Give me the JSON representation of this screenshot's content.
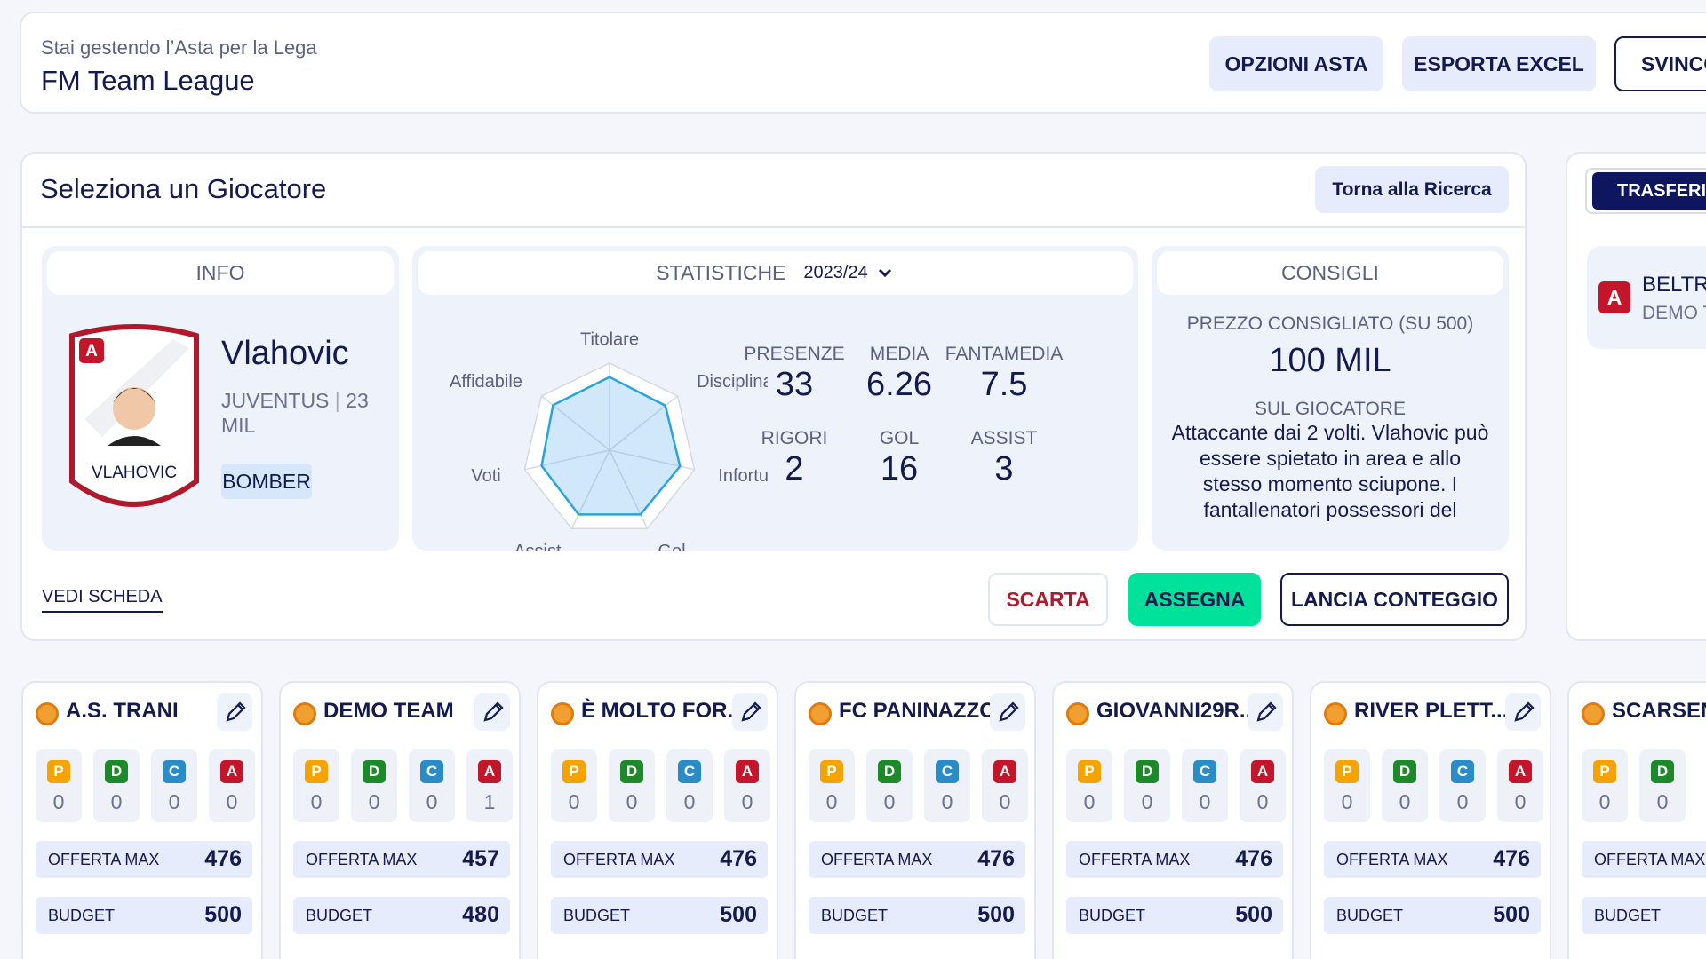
{
  "header": {
    "subtitle": "Stai gestendo l’Asta per la Lega",
    "title": "FM Team League",
    "buttons": [
      "OPZIONI ASTA",
      "ESPORTA EXCEL",
      "SVINCO"
    ]
  },
  "selection": {
    "title": "Seleziona un Giocatore",
    "back_button": "Torna alla Ricerca",
    "info": {
      "heading": "INFO",
      "role": "A",
      "card_name": "VLAHOVIC",
      "name": "Vlahovic",
      "team": "JUVENTUS",
      "separator": "|",
      "price": "23 MIL",
      "tag": "BOMBER"
    },
    "stats": {
      "heading": "STATISTICHE",
      "season": "2023/24",
      "radar": {
        "axes": [
          "Titolare",
          "Disciplina",
          "Infortur",
          "Gol",
          "Assist",
          "Voti",
          "Affidabile"
        ],
        "values": [
          84,
          82,
          83,
          82,
          82,
          80,
          83
        ],
        "range": [
          0,
          100
        ]
      },
      "items": [
        {
          "label": "PRESENZE",
          "value": 33
        },
        {
          "label": "MEDIA",
          "value": 6.26
        },
        {
          "label": "FANTAMEDIA",
          "value": 7.5
        },
        {
          "label": "RIGORI",
          "value": 2
        },
        {
          "label": "GOL",
          "value": 16
        },
        {
          "label": "ASSIST",
          "value": 3
        }
      ]
    },
    "advice": {
      "heading": "CONSIGLI",
      "price_label": "PREZZO CONSIGLIATO (SU 500)",
      "price": "100 MIL",
      "about_label": "SUL GIOCATORE",
      "about": "Attaccante dai 2 volti. Vlahovic può essere spietato in area e allo stesso momento sciupone. I fantallenatori possessori del"
    },
    "actions": {
      "link": "VEDI SCHEDA",
      "discard": "SCARTA",
      "assign": "ASSEGNA",
      "count": "LANCIA CONTEGGIO"
    }
  },
  "side": {
    "button": "TRASFERIM",
    "player": {
      "role": "A",
      "name": "BELTRA",
      "team": "DEMO TE"
    }
  },
  "teams": {
    "role_labels": [
      "P",
      "D",
      "C",
      "A"
    ],
    "offer_label": "OFFERTA MAX",
    "budget_label": "BUDGET",
    "cards": [
      {
        "name": "A.S. TRANI",
        "counts": [
          0,
          0,
          0,
          0
        ],
        "offer": 476,
        "budget": 500
      },
      {
        "name": "DEMO TEAM",
        "counts": [
          0,
          0,
          0,
          1
        ],
        "offer": 457,
        "budget": 480
      },
      {
        "name": "È MOLTO FOR...",
        "counts": [
          0,
          0,
          0,
          0
        ],
        "offer": 476,
        "budget": 500
      },
      {
        "name": "FC PANINAZZO",
        "counts": [
          0,
          0,
          0,
          0
        ],
        "offer": 476,
        "budget": 500
      },
      {
        "name": "GIOVANNI29R...",
        "counts": [
          0,
          0,
          0,
          0
        ],
        "offer": 476,
        "budget": 500
      },
      {
        "name": "RIVER PLETT...",
        "counts": [
          0,
          0,
          0,
          0
        ],
        "offer": 476,
        "budget": 500
      },
      {
        "name": "SCARSENA",
        "counts": [
          0,
          0
        ]
      }
    ]
  }
}
